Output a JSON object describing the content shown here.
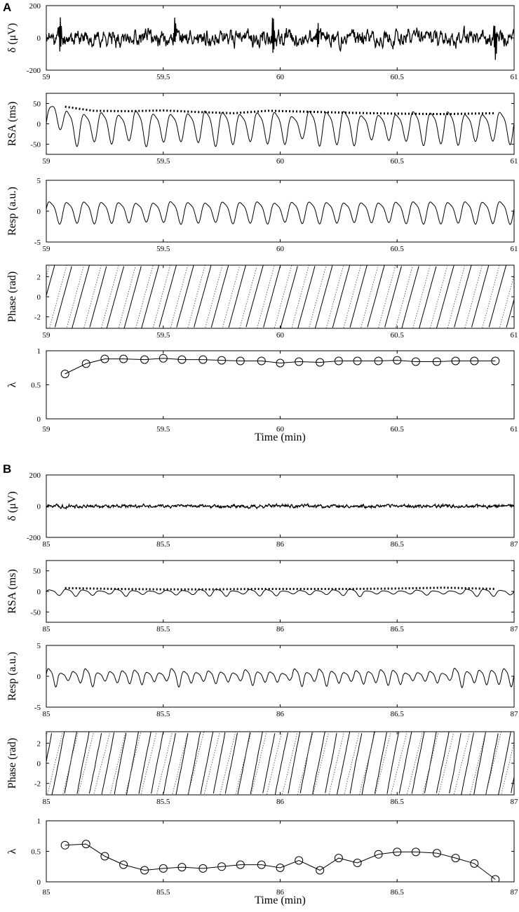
{
  "chart_data": [
    {
      "panel": "A",
      "type": "line",
      "xlabel": "Time (min)",
      "x_ticks": [
        "59",
        "59.5",
        "60",
        "60.5",
        "61"
      ],
      "xlim": [
        59,
        61
      ],
      "subplots": [
        {
          "id": "eeg",
          "ylabel": "δ (μV)",
          "ylim": [
            -200,
            200
          ],
          "y_ticks": [
            "200",
            "0",
            "-200"
          ],
          "series": [
            {
              "style": "solid",
              "signal": {
                "kind": "noise",
                "amp": 45,
                "seed": 11,
                "spikes": [
                  [
                    59.06,
                    140
                  ],
                  [
                    59.55,
                    110
                  ],
                  [
                    59.97,
                    150
                  ],
                  [
                    60.16,
                    95
                  ],
                  [
                    60.92,
                    120
                  ]
                ]
              }
            }
          ]
        },
        {
          "id": "rsa",
          "ylabel": "RSA (ms)",
          "ylim": [
            -75,
            75
          ],
          "y_ticks": [
            "50",
            "0",
            "-50"
          ],
          "series": [
            {
              "style": "solid",
              "signal": {
                "kind": "osc",
                "cycles": 27,
                "amp": 34,
                "offset": -5,
                "ampVar": 0.25,
                "seed": 3,
                "startBoost": 70
              }
            },
            {
              "style": "dotted",
              "x": [
                59.08,
                59.2,
                59.35,
                59.5,
                59.65,
                59.8,
                59.95,
                60.1,
                60.3,
                60.5,
                60.7,
                60.92
              ],
              "y": [
                42,
                32,
                31,
                33,
                29,
                26,
                32,
                30,
                27,
                25,
                24,
                26
              ]
            }
          ]
        },
        {
          "id": "resp",
          "ylabel": "Resp (a.u.)",
          "ylim": [
            -5,
            5
          ],
          "y_ticks": [
            "5",
            "0",
            "-5"
          ],
          "series": [
            {
              "style": "solid",
              "signal": {
                "kind": "osc",
                "cycles": 27,
                "amp": 1.6,
                "offset": 0,
                "ampVar": 0.1,
                "seed": 5
              }
            }
          ]
        },
        {
          "id": "phase",
          "ylabel": "Phase (rad)",
          "ylim": [
            -3.14,
            3.14
          ],
          "y_ticks": [
            "2",
            "0",
            "-2"
          ],
          "series": [
            {
              "style": "solid",
              "signal": {
                "kind": "saw",
                "cycles": 27,
                "shift": 0.0,
                "jitter": 0.05,
                "seed": 7
              }
            },
            {
              "style": "dotted-gray",
              "signal": {
                "kind": "saw",
                "cycles": 27,
                "shift": 0.3,
                "jitter": 0.05,
                "seed": 8
              }
            }
          ]
        },
        {
          "id": "lambda",
          "ylabel": "λ",
          "ylim": [
            0,
            1
          ],
          "y_ticks": [
            "1",
            "0.5",
            "0"
          ],
          "series": [
            {
              "style": "marker-line",
              "x": [
                59.08,
                59.17,
                59.25,
                59.33,
                59.42,
                59.5,
                59.58,
                59.67,
                59.75,
                59.83,
                59.92,
                60.0,
                60.08,
                60.17,
                60.25,
                60.33,
                60.42,
                60.5,
                60.58,
                60.67,
                60.75,
                60.83,
                60.92
              ],
              "y": [
                0.66,
                0.81,
                0.88,
                0.88,
                0.87,
                0.89,
                0.87,
                0.87,
                0.86,
                0.85,
                0.85,
                0.82,
                0.84,
                0.83,
                0.85,
                0.85,
                0.85,
                0.86,
                0.84,
                0.84,
                0.85,
                0.85,
                0.85
              ]
            }
          ]
        }
      ]
    },
    {
      "panel": "B",
      "type": "line",
      "xlabel": "Time (min)",
      "x_ticks": [
        "85",
        "85.5",
        "86",
        "86.5",
        "87"
      ],
      "xlim": [
        85,
        87
      ],
      "subplots": [
        {
          "id": "eeg",
          "ylabel": "δ (μV)",
          "ylim": [
            -200,
            200
          ],
          "y_ticks": [
            "200",
            "0",
            "-200"
          ],
          "series": [
            {
              "style": "solid",
              "signal": {
                "kind": "noise",
                "amp": 10,
                "seed": 21,
                "spikes": []
              }
            }
          ]
        },
        {
          "id": "rsa",
          "ylabel": "RSA (ms)",
          "ylim": [
            -75,
            75
          ],
          "y_ticks": [
            "50",
            "0",
            "-50"
          ],
          "series": [
            {
              "style": "solid",
              "signal": {
                "kind": "osc",
                "cycles": 28,
                "amp": 6,
                "offset": -2,
                "ampVar": 0.5,
                "seed": 13
              }
            },
            {
              "style": "dotted",
              "x": [
                85.08,
                85.3,
                85.5,
                85.7,
                85.9,
                86.1,
                86.3,
                86.5,
                86.7,
                86.92
              ],
              "y": [
                8,
                6,
                5,
                5,
                6,
                6,
                6,
                7,
                9,
                6
              ]
            }
          ]
        },
        {
          "id": "resp",
          "ylabel": "Resp (a.u.)",
          "ylim": [
            -5,
            5
          ],
          "y_ticks": [
            "5",
            "0",
            "-5"
          ],
          "series": [
            {
              "style": "solid",
              "signal": {
                "kind": "osc",
                "cycles": 38,
                "amp": 1.0,
                "offset": 0,
                "ampVar": 0.5,
                "seed": 17
              }
            }
          ]
        },
        {
          "id": "phase",
          "ylabel": "Phase (rad)",
          "ylim": [
            -3.14,
            3.14
          ],
          "y_ticks": [
            "2",
            "0",
            "-2"
          ],
          "series": [
            {
              "style": "solid",
              "signal": {
                "kind": "saw",
                "cycles": 38,
                "shift": 0.0,
                "jitter": 0.25,
                "seed": 19
              }
            },
            {
              "style": "dotted-gray",
              "signal": {
                "kind": "saw",
                "cycles": 30,
                "shift": 0.4,
                "jitter": 0.2,
                "seed": 23
              }
            }
          ]
        },
        {
          "id": "lambda",
          "ylabel": "λ",
          "ylim": [
            0,
            1
          ],
          "y_ticks": [
            "1",
            "0.5",
            "0"
          ],
          "series": [
            {
              "style": "marker-line",
              "x": [
                85.08,
                85.17,
                85.25,
                85.33,
                85.42,
                85.5,
                85.58,
                85.67,
                85.75,
                85.83,
                85.92,
                86.0,
                86.08,
                86.17,
                86.25,
                86.33,
                86.42,
                86.5,
                86.58,
                86.67,
                86.75,
                86.83,
                86.92
              ],
              "y": [
                0.6,
                0.62,
                0.42,
                0.28,
                0.19,
                0.22,
                0.24,
                0.22,
                0.25,
                0.28,
                0.28,
                0.23,
                0.35,
                0.19,
                0.39,
                0.31,
                0.45,
                0.49,
                0.49,
                0.47,
                0.39,
                0.3,
                0.04
              ]
            }
          ]
        }
      ]
    }
  ]
}
